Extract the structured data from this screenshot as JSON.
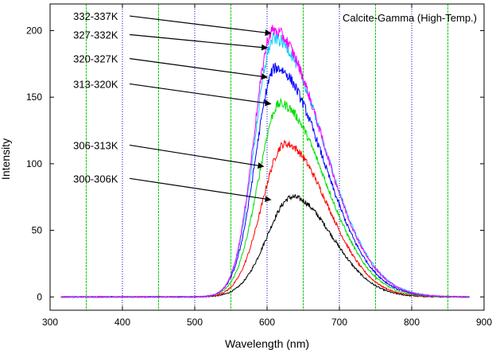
{
  "chart_data": {
    "type": "line",
    "title": "Calcite-Gamma (High-Temp.)",
    "xlabel": "Wavelength (nm)",
    "ylabel": "Intensity",
    "xlim": [
      300,
      900
    ],
    "ylim": [
      -10,
      220
    ],
    "xticks": [
      300,
      400,
      500,
      600,
      700,
      800,
      900
    ],
    "yticks": [
      0,
      50,
      100,
      150,
      200
    ],
    "grid": {
      "vertical_blue_dotted": [
        400,
        500,
        600,
        700,
        800
      ],
      "vertical_green": [
        350,
        450,
        550,
        650,
        750,
        850
      ]
    },
    "legend": "none",
    "colors": {
      "grid_blue": "#0000cc",
      "grid_green": "#00cc00"
    },
    "x_range_data": [
      315,
      880
    ],
    "series": [
      {
        "name": "300-306K",
        "color": "#000000",
        "peak_x": 635,
        "peak_y": 75,
        "sigma_left": 35,
        "sigma_right": 55
      },
      {
        "name": "306-313K",
        "color": "#ff0000",
        "peak_x": 625,
        "peak_y": 115,
        "sigma_left": 32,
        "sigma_right": 58
      },
      {
        "name": "313-320K",
        "color": "#00dd00",
        "peak_x": 618,
        "peak_y": 145,
        "sigma_left": 30,
        "sigma_right": 62
      },
      {
        "name": "320-327K",
        "color": "#0000ff",
        "peak_x": 612,
        "peak_y": 172,
        "sigma_left": 28,
        "sigma_right": 65
      },
      {
        "name": "327-332K",
        "color": "#00ccff",
        "peak_x": 610,
        "peak_y": 194,
        "sigma_left": 27,
        "sigma_right": 67
      },
      {
        "name": "332-337K",
        "color": "#ff00ff",
        "peak_x": 608,
        "peak_y": 200,
        "sigma_left": 26,
        "sigma_right": 67
      }
    ],
    "annotations": [
      {
        "text": "332-337K",
        "label_x": 332,
        "label_y": 208,
        "arrow_to_x": 605,
        "arrow_to_y": 198
      },
      {
        "text": "327-332K",
        "label_x": 332,
        "label_y": 194,
        "arrow_to_x": 600,
        "arrow_to_y": 187
      },
      {
        "text": "320-327K",
        "label_x": 332,
        "label_y": 176,
        "arrow_to_x": 600,
        "arrow_to_y": 165
      },
      {
        "text": "313-320K",
        "label_x": 332,
        "label_y": 157,
        "arrow_to_x": 605,
        "arrow_to_y": 145
      },
      {
        "text": "306-313K",
        "label_x": 332,
        "label_y": 111,
        "arrow_to_x": 595,
        "arrow_to_y": 98
      },
      {
        "text": "300-306K",
        "label_x": 332,
        "label_y": 86,
        "arrow_to_x": 605,
        "arrow_to_y": 73
      }
    ]
  }
}
